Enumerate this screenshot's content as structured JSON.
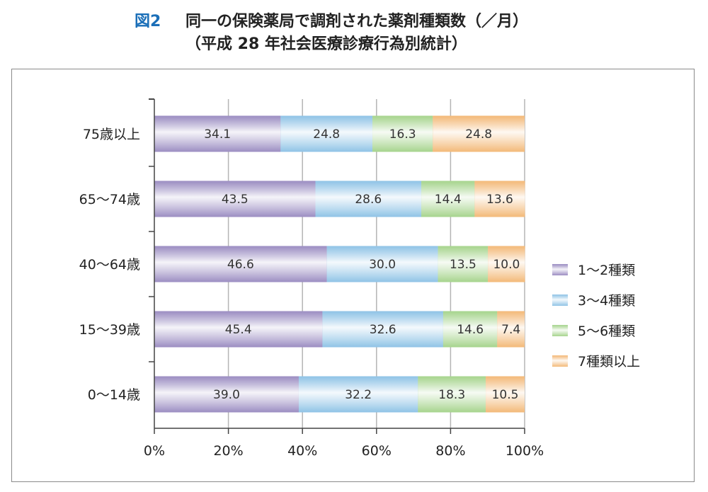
{
  "figure": {
    "label": "図2",
    "title_line1": "同一の保険薬局で調剤された薬剤種類数（／月）",
    "title_line2": "（平成 28 年社会医療診療行為別統計）"
  },
  "chart_data": {
    "type": "bar",
    "orientation": "horizontal",
    "stacked": "percent",
    "categories": [
      "75歳以上",
      "65〜74歳",
      "40〜64歳",
      "15〜39歳",
      "0〜14歳"
    ],
    "series": [
      {
        "name": "1〜2種類",
        "color": "#9b8dc2",
        "values": [
          34.1,
          43.5,
          46.6,
          45.4,
          39.0
        ],
        "labels": [
          "34.1",
          "43.5",
          "46.6",
          "45.4",
          "39.0"
        ]
      },
      {
        "name": "3〜4種類",
        "color": "#8fc3e6",
        "values": [
          24.8,
          28.6,
          30.0,
          32.6,
          32.2
        ],
        "labels": [
          "24.8",
          "28.6",
          "30.0",
          "32.6",
          "32.2"
        ]
      },
      {
        "name": "5〜6種類",
        "color": "#a6d48d",
        "values": [
          16.3,
          14.4,
          13.5,
          14.6,
          18.3
        ],
        "labels": [
          "16.3",
          "14.4",
          "13.5",
          "14.6",
          "18.3"
        ]
      },
      {
        "name": "7種類以上",
        "color": "#f3b978",
        "values": [
          24.8,
          13.6,
          10.0,
          7.4,
          10.5
        ],
        "labels": [
          "24.8",
          "13.6",
          "10.0",
          "7.4",
          "10.5"
        ]
      }
    ],
    "xlim": [
      0,
      100
    ],
    "xticks": [
      "0%",
      "20%",
      "40%",
      "60%",
      "80%",
      "100%"
    ],
    "grid": true,
    "legend_position": "right"
  }
}
